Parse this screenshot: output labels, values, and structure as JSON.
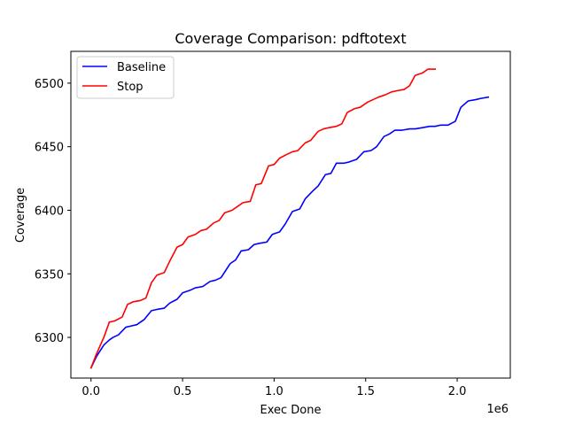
{
  "chart_data": {
    "type": "line",
    "title": "Coverage Comparison: pdftotext",
    "xlabel": "Exec Done",
    "ylabel": "Coverage",
    "x_offset_label": "1e6",
    "xlim": [
      -0.11,
      2.29
    ],
    "ylim": [
      6268,
      6525
    ],
    "xticks": [
      0.0,
      0.5,
      1.0,
      1.5,
      2.0
    ],
    "xtick_labels": [
      "0.0",
      "0.5",
      "1.0",
      "1.5",
      "2.0"
    ],
    "yticks": [
      6300,
      6350,
      6400,
      6450,
      6500
    ],
    "ytick_labels": [
      "6300",
      "6350",
      "6400",
      "6450",
      "6500"
    ],
    "grid": false,
    "legend_position": "upper-left",
    "series": [
      {
        "name": "Baseline",
        "color": "#0000ff",
        "x": [
          0.0,
          0.03,
          0.07,
          0.1,
          0.12,
          0.15,
          0.19,
          0.22,
          0.25,
          0.29,
          0.33,
          0.36,
          0.4,
          0.43,
          0.47,
          0.5,
          0.54,
          0.57,
          0.61,
          0.65,
          0.68,
          0.71,
          0.76,
          0.79,
          0.82,
          0.86,
          0.89,
          0.92,
          0.96,
          0.99,
          1.03,
          1.06,
          1.1,
          1.14,
          1.17,
          1.21,
          1.24,
          1.28,
          1.31,
          1.34,
          1.38,
          1.41,
          1.45,
          1.49,
          1.53,
          1.56,
          1.6,
          1.63,
          1.66,
          1.7,
          1.74,
          1.77,
          1.81,
          1.85,
          1.88,
          1.91,
          1.95,
          1.99,
          2.02,
          2.06,
          2.1,
          2.13,
          2.17
        ],
        "y": [
          6276,
          6285,
          6294,
          6298,
          6300,
          6302,
          6308,
          6309,
          6310,
          6314,
          6321,
          6322,
          6323,
          6327,
          6330,
          6335,
          6337,
          6339,
          6340,
          6344,
          6345,
          6347,
          6358,
          6361,
          6368,
          6369,
          6373,
          6374,
          6375,
          6381,
          6383,
          6389,
          6399,
          6401,
          6409,
          6415,
          6419,
          6428,
          6429,
          6437,
          6437,
          6438,
          6440,
          6446,
          6447,
          6450,
          6458,
          6460,
          6463,
          6463,
          6464,
          6464,
          6465,
          6466,
          6466,
          6467,
          6467,
          6470,
          6481,
          6486,
          6487,
          6488,
          6489
        ]
      },
      {
        "name": "Stop",
        "color": "#ff0000",
        "x": [
          0.0,
          0.03,
          0.07,
          0.1,
          0.13,
          0.17,
          0.2,
          0.23,
          0.27,
          0.3,
          0.33,
          0.36,
          0.4,
          0.43,
          0.47,
          0.5,
          0.53,
          0.57,
          0.6,
          0.63,
          0.67,
          0.7,
          0.73,
          0.77,
          0.8,
          0.83,
          0.87,
          0.9,
          0.93,
          0.97,
          1.0,
          1.03,
          1.07,
          1.1,
          1.13,
          1.17,
          1.2,
          1.24,
          1.27,
          1.3,
          1.34,
          1.37,
          1.4,
          1.44,
          1.47,
          1.51,
          1.54,
          1.57,
          1.61,
          1.64,
          1.67,
          1.71,
          1.74,
          1.77,
          1.81,
          1.84,
          1.88
        ],
        "y": [
          6276,
          6287,
          6300,
          6312,
          6313,
          6316,
          6326,
          6328,
          6329,
          6331,
          6343,
          6349,
          6351,
          6360,
          6371,
          6373,
          6379,
          6381,
          6384,
          6385,
          6390,
          6392,
          6398,
          6400,
          6403,
          6406,
          6407,
          6420,
          6421,
          6435,
          6436,
          6441,
          6444,
          6446,
          6447,
          6453,
          6455,
          6462,
          6464,
          6465,
          6466,
          6468,
          6477,
          6480,
          6481,
          6485,
          6487,
          6489,
          6491,
          6493,
          6494,
          6495,
          6498,
          6506,
          6508,
          6511,
          6511
        ]
      }
    ]
  }
}
